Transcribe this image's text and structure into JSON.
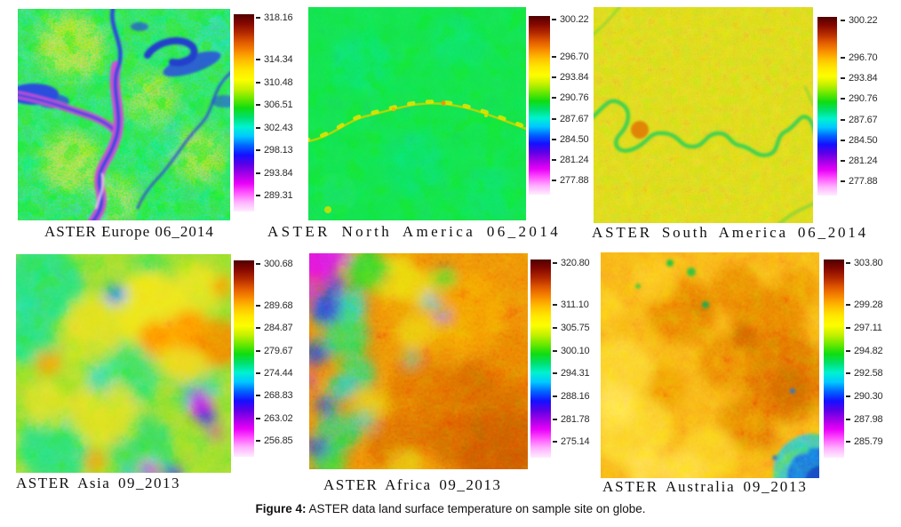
{
  "figure": {
    "caption_prefix": "Figure 4:",
    "caption_rest": " ASTER data land surface temperature on sample site on globe."
  },
  "colorbar": {
    "stops": [
      "#4e0000",
      "#860800",
      "#b42a00",
      "#e25a00",
      "#f88c00",
      "#ffc000",
      "#ffe800",
      "#fdfd00",
      "#c4f000",
      "#6ae800",
      "#10dc10",
      "#00e070",
      "#00f2d0",
      "#00c8ff",
      "#0064ff",
      "#1410ff",
      "#5c00e6",
      "#a300e8",
      "#e800f8",
      "#ff55ff",
      "#ffb2ff",
      "#ffecff"
    ]
  },
  "panels": [
    {
      "id": "europe",
      "label": "ASTER Europe 06_2014",
      "ticks": [
        "318.16",
        "314.34",
        "310.48",
        "306.51",
        "302.43",
        "298.13",
        "293.84",
        "289.31"
      ]
    },
    {
      "id": "north-america",
      "label": "ASTER North America 06_2014",
      "ticks": [
        "300.22",
        "296.70",
        "293.84",
        "290.76",
        "287.67",
        "284.50",
        "281.24",
        "277.88"
      ]
    },
    {
      "id": "south-america",
      "label": "ASTER South America 06_2014",
      "ticks": [
        "300.22",
        "296.70",
        "293.84",
        "290.76",
        "287.67",
        "284.50",
        "281.24",
        "277.88"
      ]
    },
    {
      "id": "asia",
      "label": "ASTER Asia 09_2013",
      "ticks": [
        "300.68",
        "289.68",
        "284.87",
        "279.67",
        "274.44",
        "268.83",
        "263.02",
        "256.85"
      ]
    },
    {
      "id": "africa",
      "label": "ASTER Africa 09_2013",
      "ticks": [
        "320.80",
        "311.10",
        "305.75",
        "300.10",
        "294.31",
        "288.16",
        "281.78",
        "275.14"
      ]
    },
    {
      "id": "australia",
      "label": "ASTER Australia 09_2013",
      "ticks": [
        "303.80",
        "299.28",
        "297.11",
        "294.82",
        "292.58",
        "290.30",
        "287.98",
        "285.79"
      ]
    }
  ]
}
